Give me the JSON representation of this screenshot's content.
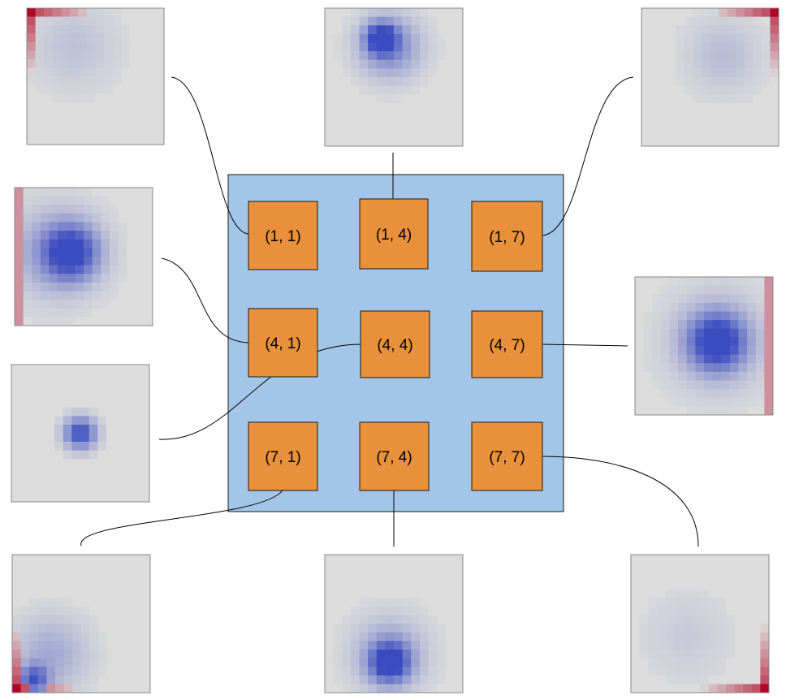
{
  "colors": {
    "grid_fill": "#a2c5e8",
    "grid_stroke": "#1a1a1a",
    "cell_fill": "#e8903a",
    "cell_stroke": "#1a1a1a",
    "heatmap_neutral": "#dcdcdc",
    "heatmap_negative": "#3b4cc0",
    "heatmap_positive": "#b40426",
    "connector": "#000000"
  },
  "cells": [
    {
      "id": "c11",
      "label": "(1, 1)"
    },
    {
      "id": "c14",
      "label": "(1, 4)"
    },
    {
      "id": "c17",
      "label": "(1, 7)"
    },
    {
      "id": "c41",
      "label": "(4, 1)"
    },
    {
      "id": "c44",
      "label": "(4, 4)"
    },
    {
      "id": "c47",
      "label": "(4, 7)"
    },
    {
      "id": "c71",
      "label": "(7, 1)"
    },
    {
      "id": "c74",
      "label": "(7, 4)"
    },
    {
      "id": "c77",
      "label": "(7, 7)"
    }
  ],
  "heatmaps": [
    {
      "cell": "c11",
      "pattern": "top-left corner positive, faint negative blob"
    },
    {
      "cell": "c14",
      "pattern": "strong negative spot near top center"
    },
    {
      "cell": "c17",
      "pattern": "top-right corner positive, faint negative blob"
    },
    {
      "cell": "c41",
      "pattern": "strong negative blob left-center, positive left edge"
    },
    {
      "cell": "c44",
      "pattern": "small negative spot at center"
    },
    {
      "cell": "c47",
      "pattern": "strong negative blob right-center, positive right edge"
    },
    {
      "cell": "c71",
      "pattern": "bottom-left corner positive, negative streak"
    },
    {
      "cell": "c74",
      "pattern": "negative spot near bottom center"
    },
    {
      "cell": "c77",
      "pattern": "bottom-right corner positive, faint negative blob"
    }
  ]
}
